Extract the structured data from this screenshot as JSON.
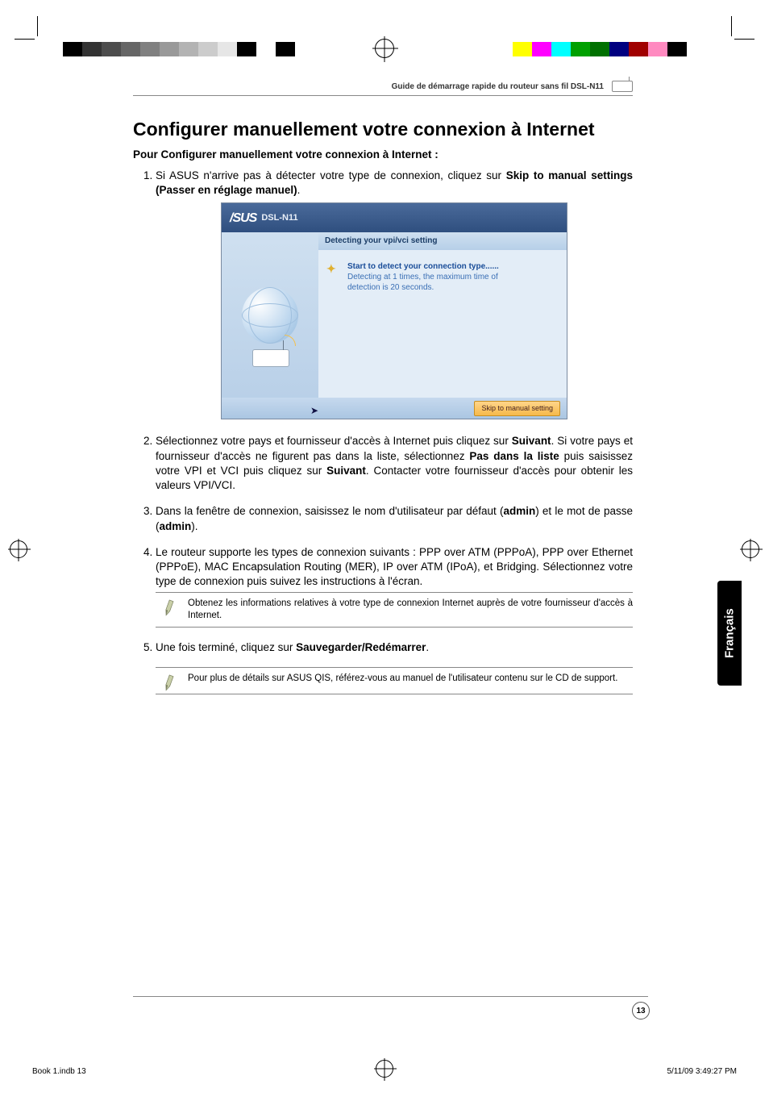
{
  "print": {
    "left_swatches": [
      "#000000",
      "#333333",
      "#4d4d4d",
      "#666666",
      "#808080",
      "#999999",
      "#b3b3b3",
      "#cccccc",
      "#e6e6e6",
      "#000000",
      "#ffffff",
      "#000000"
    ],
    "right_swatches": [
      "#ffff00",
      "#ff00ff",
      "#00ffff",
      "#00a000",
      "#007000",
      "#000080",
      "#a00000",
      "#ff8ac0",
      "#000000",
      "#ffffff"
    ]
  },
  "header": {
    "text": "Guide de démarrage rapide du routeur sans fil DSL-N11"
  },
  "title": "Configurer manuellement votre connexion à Internet",
  "subtitle": "Pour Configurer manuellement votre connexion à Internet :",
  "steps": {
    "s1_pre": "Si ASUS n'arrive pas à détecter votre type de connexion, cliquez sur ",
    "s1_bold": "Skip to manual settings (Passer en réglage manuel)",
    "s1_post": ".",
    "s2_a": "Sélectionnez votre pays et fournisseur d'accès à Internet puis cliquez sur ",
    "s2_b": "Suivant",
    "s2_c": ". Si votre pays et fournisseur d'accès ne figurent pas dans la liste, sélectionnez ",
    "s2_d": "Pas dans la liste",
    "s2_e": " puis saisissez votre VPI et VCI puis cliquez sur ",
    "s2_f": "Suivant",
    "s2_g": ". Contacter votre fournisseur d'accès pour obtenir les valeurs VPI/VCI.",
    "s3_a": "Dans la fenêtre de connexion, saisissez le nom d'utilisateur par défaut (",
    "s3_b": "admin",
    "s3_c": ") et le mot de passe (",
    "s3_d": "admin",
    "s3_e": ").",
    "s4": "Le routeur supporte les types de connexion suivants : PPP over ATM (PPPoA), PPP over Ethernet (PPPoE), MAC Encapsulation Routing (MER), IP over ATM (IPoA), et Bridging. Sélectionnez votre type de connexion puis suivez les instructions à l'écran.",
    "s5_a": "Une fois terminé, cliquez sur ",
    "s5_b": "Sauvegarder/Redémarrer",
    "s5_c": "."
  },
  "screenshot": {
    "brand": "/SUS",
    "model": "DSL-N11",
    "panel_title": "Detecting your vpi/vci setting",
    "msg_line1": "Start to detect your connection type......",
    "msg_line2": "Detecting at 1 times, the maximum time of",
    "msg_line3": "detection is 20 seconds.",
    "button": "Skip to manual setting"
  },
  "notes": {
    "n1": "Obtenez les informations relatives à votre type de connexion Internet auprès de votre fournisseur d'accès à Internet.",
    "n2": "Pour plus de détails sur ASUS QIS, référez-vous au manuel de l'utilisateur contenu sur le CD de support."
  },
  "side_tab": "Français",
  "page_number": "13",
  "footer": {
    "left": "Book 1.indb   13",
    "right": "5/11/09   3:49:27 PM"
  }
}
